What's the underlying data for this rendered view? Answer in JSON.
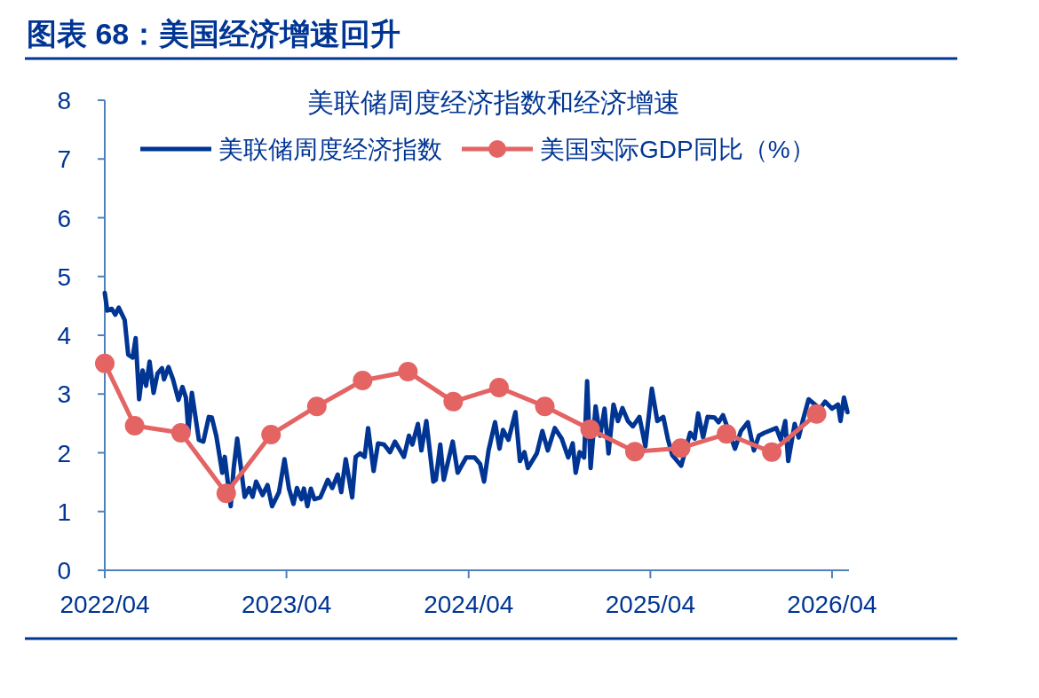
{
  "chart_data": {
    "type": "line",
    "title": "图表 68：美国经济增速回升",
    "subtitle": "美联储周度经济指数和经济增速",
    "xlim": [
      "2022-04-01",
      "2026-05-05"
    ],
    "xticks": [
      {
        "value": "2022-04-01",
        "label": "2022/04"
      },
      {
        "value": "2023-04-01",
        "label": "2023/04"
      },
      {
        "value": "2024-04-01",
        "label": "2024/04"
      },
      {
        "value": "2025-04-01",
        "label": "2025/04"
      },
      {
        "value": "2026-04-01",
        "label": "2026/04"
      }
    ],
    "ylim": [
      0,
      8
    ],
    "yticks": [
      0,
      1,
      2,
      3,
      4,
      5,
      6,
      7,
      8
    ],
    "grid": false,
    "legend": "top",
    "series": [
      {
        "name": "美联储周度经济指数",
        "color": "#003594",
        "marker": "none",
        "x": [
          "2022-04-01",
          "2022-04-06",
          "2022-04-15",
          "2022-04-22",
          "2022-04-29",
          "2022-05-11",
          "2022-05-18",
          "2022-05-27",
          "2022-06-02",
          "2022-06-09",
          "2022-06-16",
          "2022-06-23",
          "2022-06-30",
          "2022-07-08",
          "2022-07-16",
          "2022-07-25",
          "2022-07-29",
          "2022-08-07",
          "2022-08-16",
          "2022-08-27",
          "2022-09-04",
          "2022-09-11",
          "2022-09-16",
          "2022-09-23",
          "2022-10-07",
          "2022-10-16",
          "2022-10-27",
          "2022-11-02",
          "2022-11-11",
          "2022-11-23",
          "2022-11-28",
          "2022-12-10",
          "2022-12-16",
          "2022-12-23",
          "2023-01-07",
          "2023-01-16",
          "2023-01-23",
          "2023-01-30",
          "2023-02-12",
          "2023-02-22",
          "2023-03-03",
          "2023-03-17",
          "2023-03-28",
          "2023-04-06",
          "2023-04-15",
          "2023-04-22",
          "2023-05-01",
          "2023-05-06",
          "2023-05-13",
          "2023-05-20",
          "2023-05-27",
          "2023-06-08",
          "2023-06-23",
          "2023-07-02",
          "2023-07-13",
          "2023-07-20",
          "2023-07-29",
          "2023-08-11",
          "2023-08-18",
          "2023-08-27",
          "2023-09-05",
          "2023-09-12",
          "2023-09-23",
          "2023-10-02",
          "2023-10-14",
          "2023-10-26",
          "2023-11-05",
          "2023-11-23",
          "2023-12-03",
          "2023-12-10",
          "2023-12-21",
          "2023-12-28",
          "2024-01-07",
          "2024-01-21",
          "2024-01-26",
          "2024-02-04",
          "2024-02-11",
          "2024-02-29",
          "2024-03-10",
          "2024-03-27",
          "2024-04-13",
          "2024-04-24",
          "2024-05-02",
          "2024-05-11",
          "2024-05-24",
          "2024-06-02",
          "2024-06-09",
          "2024-06-20",
          "2024-07-04",
          "2024-07-13",
          "2024-07-22",
          "2024-07-29",
          "2024-08-16",
          "2024-08-27",
          "2024-09-07",
          "2024-09-21",
          "2024-10-05",
          "2024-10-18",
          "2024-10-27",
          "2024-11-02",
          "2024-11-10",
          "2024-11-19",
          "2024-11-25",
          "2024-12-02",
          "2024-12-12",
          "2024-12-21",
          "2024-12-30",
          "2025-01-07",
          "2025-01-17",
          "2025-01-26",
          "2025-02-04",
          "2025-02-15",
          "2025-02-25",
          "2025-03-10",
          "2025-03-22",
          "2025-04-04",
          "2025-04-15",
          "2025-04-27",
          "2025-05-06",
          "2025-05-15",
          "2025-05-24",
          "2025-06-02",
          "2025-06-11",
          "2025-06-20",
          "2025-06-29",
          "2025-07-06",
          "2025-07-16",
          "2025-07-25",
          "2025-08-08",
          "2025-08-16",
          "2025-08-25",
          "2025-09-05",
          "2025-09-18",
          "2025-09-30",
          "2025-10-14",
          "2025-10-26",
          "2025-11-05",
          "2025-11-16",
          "2025-11-28",
          "2025-12-10",
          "2025-12-19",
          "2025-12-28",
          "2026-01-03",
          "2026-01-16",
          "2026-01-24",
          "2026-02-01",
          "2026-02-13",
          "2026-02-22",
          "2026-03-08",
          "2026-03-18",
          "2026-04-01",
          "2026-04-13",
          "2026-04-18",
          "2026-04-25",
          "2026-05-02"
        ],
        "values": [
          4.72,
          4.42,
          4.45,
          4.35,
          4.47,
          4.26,
          3.67,
          3.62,
          3.95,
          2.91,
          3.4,
          3.14,
          3.55,
          3.02,
          3.35,
          3.44,
          3.25,
          3.46,
          3.25,
          2.9,
          3.12,
          2.94,
          2.37,
          3.02,
          2.22,
          2.19,
          2.61,
          2.6,
          2.29,
          1.66,
          1.93,
          1.09,
          1.74,
          2.24,
          1.25,
          1.4,
          1.25,
          1.51,
          1.28,
          1.45,
          1.09,
          1.33,
          1.89,
          1.39,
          1.13,
          1.4,
          1.21,
          1.39,
          1.09,
          1.39,
          1.21,
          1.24,
          1.54,
          1.4,
          1.63,
          1.33,
          1.89,
          1.24,
          1.93,
          1.99,
          1.93,
          2.42,
          1.69,
          2.16,
          2.14,
          2.01,
          2.19,
          1.93,
          2.29,
          2.14,
          2.49,
          2.04,
          2.54,
          1.51,
          1.54,
          2.14,
          1.54,
          2.19,
          1.66,
          1.92,
          1.92,
          1.81,
          1.51,
          2.04,
          2.52,
          2.07,
          2.39,
          2.22,
          2.69,
          1.86,
          2.01,
          1.74,
          1.99,
          2.37,
          2.04,
          2.42,
          2.24,
          1.92,
          2.16,
          1.66,
          2.01,
          1.92,
          3.22,
          1.74,
          2.79,
          2.29,
          2.75,
          1.99,
          2.82,
          2.54,
          2.76,
          2.54,
          2.45,
          2.61,
          2.11,
          3.09,
          2.54,
          2.61,
          2.24,
          1.96,
          null,
          1.78,
          null,
          2.34,
          2.24,
          2.67,
          2.26,
          2.61,
          2.6,
          2.52,
          2.64,
          null,
          2.07,
          2.37,
          2.52,
          2.04,
          2.29,
          2.34,
          null,
          2.42,
          2.22,
          2.54,
          1.86,
          2.49,
          2.26,
          2.54,
          2.91,
          null,
          2.75,
          2.87,
          2.75,
          2.82,
          2.54,
          2.94,
          2.69
        ]
      },
      {
        "name": "美国实际GDP同比（%）",
        "color": "#e46464",
        "marker": "circle",
        "x": [
          "2022-04-01",
          "2022-05-31",
          "2022-09-01",
          "2022-12-01",
          "2023-03-01",
          "2023-06-01",
          "2023-09-01",
          "2023-12-01",
          "2024-03-01",
          "2024-06-01",
          "2024-09-01",
          "2024-12-01",
          "2025-03-01",
          "2025-06-01",
          "2025-09-01",
          "2025-12-01",
          "2026-03-01"
        ],
        "values": [
          3.52,
          2.46,
          2.34,
          1.31,
          2.31,
          2.79,
          3.23,
          3.38,
          2.87,
          3.11,
          2.79,
          2.4,
          2.02,
          2.08,
          2.32,
          2.01,
          2.66
        ]
      }
    ]
  }
}
